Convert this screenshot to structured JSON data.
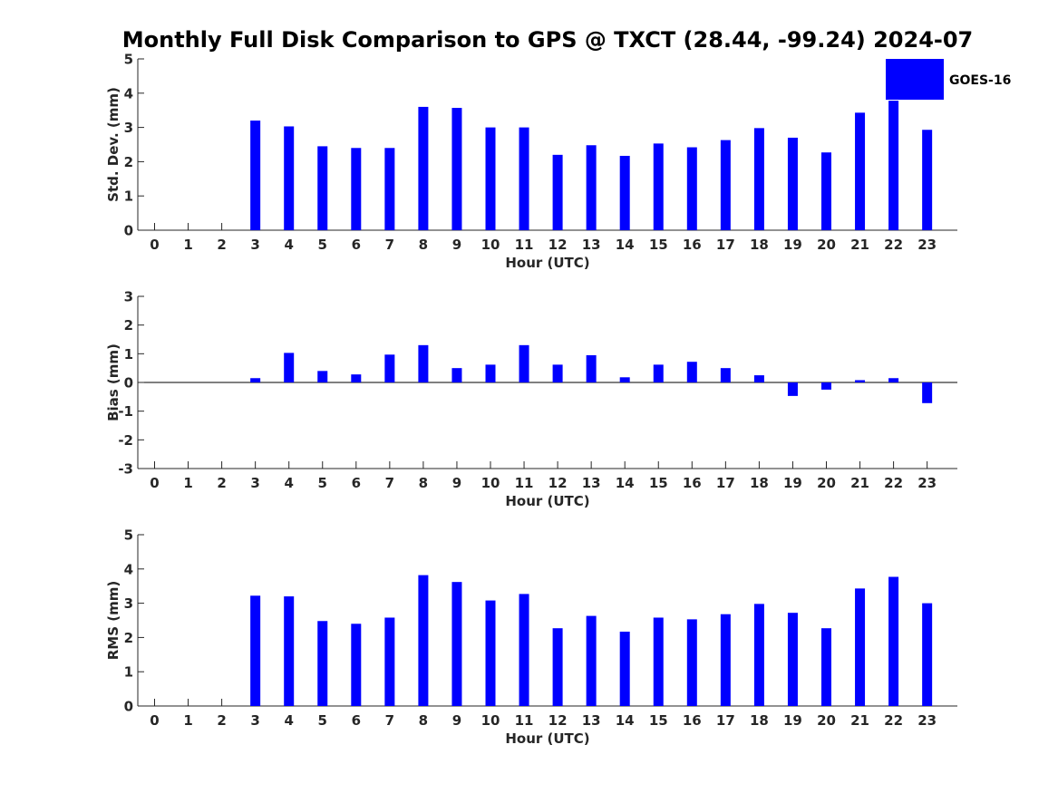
{
  "chart_data": {
    "title": "Monthly Full Disk Comparison to GPS @ TXCT (28.44, -99.24) 2024-07",
    "legend": {
      "label": "GOES-16",
      "placement": "top-right",
      "color": "#0000ff"
    },
    "bar_color": "#0000ff",
    "charts": [
      {
        "type": "bar",
        "categories": [
          "0",
          "1",
          "2",
          "3",
          "4",
          "5",
          "6",
          "7",
          "8",
          "9",
          "10",
          "11",
          "12",
          "13",
          "14",
          "15",
          "16",
          "17",
          "18",
          "19",
          "20",
          "21",
          "22",
          "23"
        ],
        "values": [
          null,
          null,
          null,
          3.2,
          3.03,
          2.45,
          2.4,
          2.4,
          3.6,
          3.57,
          3.0,
          3.0,
          2.2,
          2.48,
          2.17,
          2.53,
          2.42,
          2.63,
          2.98,
          2.7,
          2.27,
          3.43,
          3.78,
          2.93
        ],
        "ylabel": "Std. Dev. (mm)",
        "xlabel": "Hour (UTC)",
        "ylim": [
          0,
          5
        ],
        "yticks": [
          "0",
          "1",
          "2",
          "3",
          "4",
          "5"
        ],
        "grid": false
      },
      {
        "type": "bar",
        "categories": [
          "0",
          "1",
          "2",
          "3",
          "4",
          "5",
          "6",
          "7",
          "8",
          "9",
          "10",
          "11",
          "12",
          "13",
          "14",
          "15",
          "16",
          "17",
          "18",
          "19",
          "20",
          "21",
          "22",
          "23"
        ],
        "values": [
          null,
          null,
          null,
          0.15,
          1.03,
          0.4,
          0.28,
          0.97,
          1.3,
          0.5,
          0.62,
          1.3,
          0.62,
          0.95,
          0.18,
          0.62,
          0.72,
          0.5,
          0.25,
          -0.47,
          -0.25,
          0.08,
          0.15,
          -0.72
        ],
        "ylabel": "Bias (mm)",
        "xlabel": "Hour (UTC)",
        "ylim": [
          -3,
          3
        ],
        "yticks": [
          "-3",
          "-2",
          "-1",
          "0",
          "1",
          "2",
          "3"
        ],
        "zero_line": true,
        "grid": false
      },
      {
        "type": "bar",
        "categories": [
          "0",
          "1",
          "2",
          "3",
          "4",
          "5",
          "6",
          "7",
          "8",
          "9",
          "10",
          "11",
          "12",
          "13",
          "14",
          "15",
          "16",
          "17",
          "18",
          "19",
          "20",
          "21",
          "22",
          "23"
        ],
        "values": [
          null,
          null,
          null,
          3.22,
          3.2,
          2.48,
          2.4,
          2.58,
          3.82,
          3.62,
          3.08,
          3.27,
          2.27,
          2.63,
          2.17,
          2.58,
          2.53,
          2.68,
          2.98,
          2.72,
          2.27,
          3.43,
          3.77,
          3.0
        ],
        "ylabel": "RMS (mm)",
        "xlabel": "Hour (UTC)",
        "ylim": [
          0,
          5
        ],
        "yticks": [
          "0",
          "1",
          "2",
          "3",
          "4",
          "5"
        ],
        "grid": false
      }
    ]
  }
}
